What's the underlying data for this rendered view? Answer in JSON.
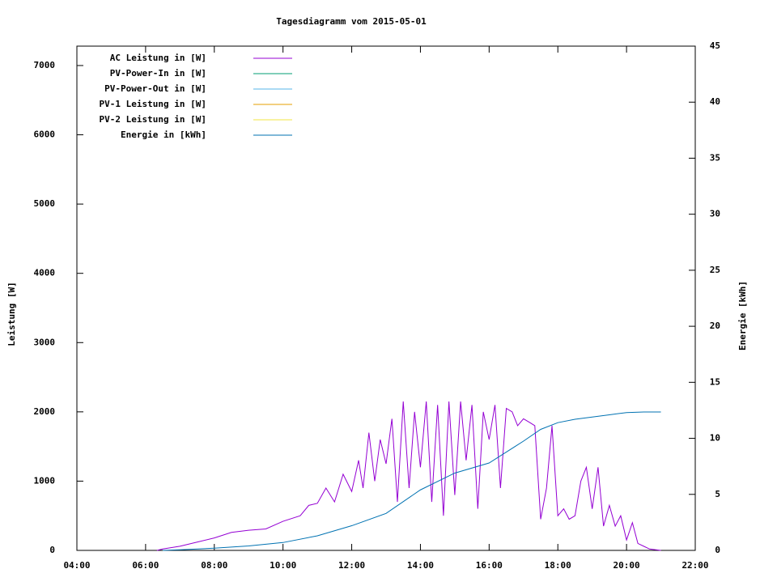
{
  "chart_data": {
    "type": "line",
    "title": "Tagesdiagramm vom 2015-05-01",
    "y_label": "Leistung [W]",
    "y2_label": "Energie [kWh]",
    "xlim": [
      4,
      22
    ],
    "xticks": [
      {
        "value": 4,
        "label": "04:00"
      },
      {
        "value": 6,
        "label": "06:00"
      },
      {
        "value": 8,
        "label": "08:00"
      },
      {
        "value": 10,
        "label": "10:00"
      },
      {
        "value": 12,
        "label": "12:00"
      },
      {
        "value": 14,
        "label": "14:00"
      },
      {
        "value": 16,
        "label": "16:00"
      },
      {
        "value": 18,
        "label": "18:00"
      },
      {
        "value": 20,
        "label": "20:00"
      },
      {
        "value": 22,
        "label": "22:00"
      }
    ],
    "ylim": [
      0,
      7280
    ],
    "yticks": [
      0,
      1000,
      2000,
      3000,
      4000,
      5000,
      6000,
      7000
    ],
    "y2lim": [
      0,
      45
    ],
    "y2ticks": [
      0,
      5,
      10,
      15,
      20,
      25,
      30,
      35,
      40,
      45
    ],
    "legend": "top-left",
    "series": [
      {
        "name": "AC Leistung in [W]",
        "color": "#9400d3",
        "x": [
          6.33,
          6.5,
          7.0,
          7.5,
          8.0,
          8.5,
          9.0,
          9.5,
          10.0,
          10.5,
          10.75,
          11.0,
          11.25,
          11.5,
          11.75,
          12.0,
          12.2,
          12.33,
          12.5,
          12.67,
          12.83,
          13.0,
          13.17,
          13.33,
          13.5,
          13.67,
          13.83,
          14.0,
          14.17,
          14.33,
          14.5,
          14.67,
          14.83,
          15.0,
          15.17,
          15.33,
          15.5,
          15.67,
          15.83,
          16.0,
          16.17,
          16.33,
          16.5,
          16.67,
          16.83,
          17.0,
          17.17,
          17.33,
          17.5,
          17.67,
          17.83,
          18.0,
          18.17,
          18.33,
          18.5,
          18.67,
          18.83,
          19.0,
          19.17,
          19.33,
          19.5,
          19.67,
          19.83,
          20.0,
          20.17,
          20.33,
          20.5,
          20.67,
          20.83,
          21.0
        ],
        "values": [
          0,
          20,
          60,
          120,
          180,
          260,
          290,
          310,
          420,
          500,
          650,
          680,
          900,
          700,
          1100,
          850,
          1300,
          900,
          1700,
          1000,
          1600,
          1250,
          1900,
          700,
          2150,
          900,
          2000,
          1200,
          2150,
          700,
          2100,
          500,
          2150,
          800,
          2150,
          1300,
          2100,
          600,
          2000,
          1600,
          2100,
          900,
          2050,
          2000,
          1800,
          1900,
          1850,
          1800,
          450,
          900,
          1800,
          500,
          600,
          450,
          500,
          1000,
          1200,
          600,
          1200,
          350,
          650,
          350,
          500,
          150,
          400,
          100,
          60,
          20,
          10,
          0
        ]
      },
      {
        "name": "PV-Power-In in [W]",
        "color": "#009e73",
        "x": [],
        "values": []
      },
      {
        "name": "PV-Power-Out in [W]",
        "color": "#56b4e9",
        "x": [],
        "values": []
      },
      {
        "name": "PV-1 Leistung in [W]",
        "color": "#e69f00",
        "x": [],
        "values": []
      },
      {
        "name": "PV-2 Leistung in [W]",
        "color": "#f0e442",
        "x": [],
        "values": []
      },
      {
        "name": "Energie in [kWh]",
        "color": "#0072b2",
        "axis": "y2",
        "x": [
          6.5,
          7,
          8,
          9,
          10,
          11,
          12,
          13,
          14,
          15,
          16,
          17,
          17.5,
          18,
          18.5,
          19,
          19.5,
          20,
          20.5,
          21
        ],
        "values": [
          0,
          0.05,
          0.2,
          0.4,
          0.7,
          1.3,
          2.2,
          3.3,
          5.4,
          6.9,
          7.8,
          9.75,
          10.8,
          11.4,
          11.7,
          11.9,
          12.1,
          12.3,
          12.35,
          12.35
        ]
      }
    ]
  }
}
